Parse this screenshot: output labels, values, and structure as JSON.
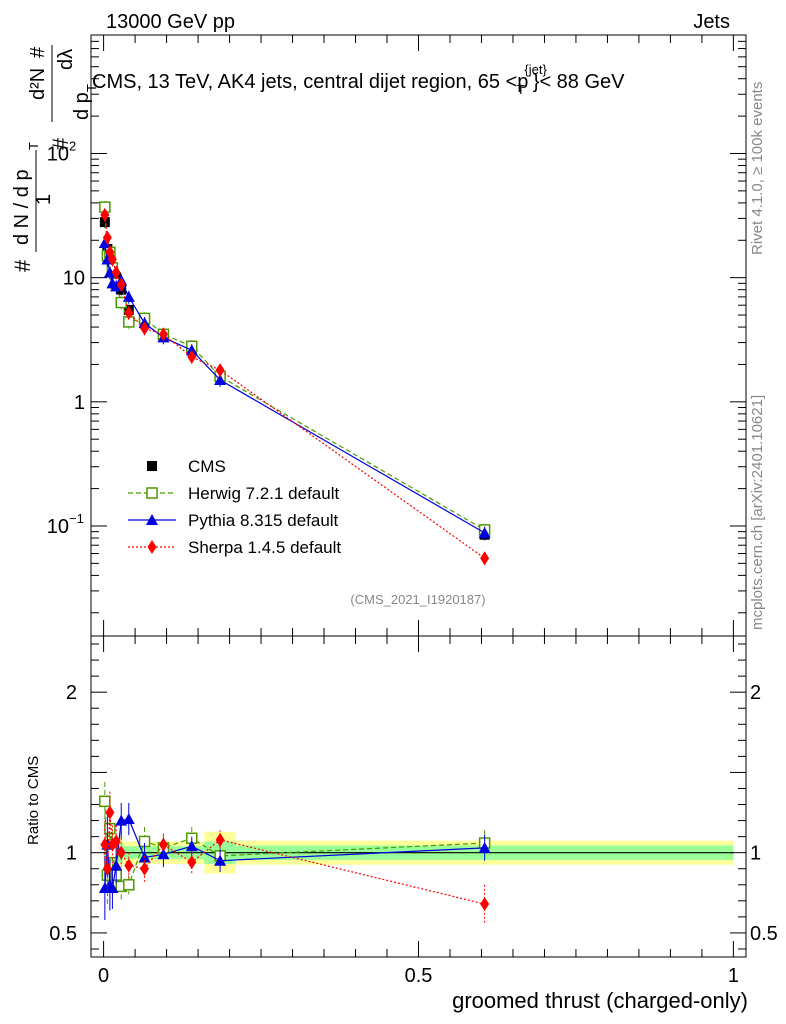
{
  "header": {
    "left": "13000 GeV pp",
    "right": "Jets",
    "title_main": "CMS, 13 TeV, AK4 jets, central dijet region, 65 <p",
    "title_sup": "{jet}",
    "title_sub": "T",
    "title_end": "}< 88 GeV"
  },
  "side": {
    "rivet": "Rivet 4.1.0, ≥ 100k events",
    "mcplots": "mcplots.cern.ch [arXiv:2401.10621]"
  },
  "watermark": "(CMS_2021_I1920187)",
  "ylabel_ratio": "Ratio to CMS",
  "xlabel": "groomed thrust (charged-only)",
  "ylabel_main": {
    "hash": "#",
    "one": "1",
    "dN": "d N / d p",
    "dN_sub": "T",
    "num": "d²N",
    "den": "d p",
    "den_sub": "T",
    "dlambda": "dλ"
  },
  "colors": {
    "cms": "#000000",
    "herwig": "#4c9a00",
    "pythia": "#0000e0",
    "sherpa": "#ff0000",
    "band_outer": "#ffff99",
    "band_inner": "#99ff99"
  },
  "chart_data": {
    "type": "line",
    "x_range": [
      -0.02,
      1.02
    ],
    "y_range_main": [
      0.013,
      900
    ],
    "y_range_ratio": [
      0.35,
      2.35
    ],
    "main_yticks": [
      {
        "value": 0.1,
        "base": "10",
        "exp": "−1"
      },
      {
        "value": 1,
        "label": "1"
      },
      {
        "value": 10,
        "label": "10"
      },
      {
        "value": 100,
        "base": "10",
        "exp": "2"
      }
    ],
    "ratio_yticks": [
      {
        "value": 0.5,
        "label": "0.5"
      },
      {
        "value": 1,
        "label": "1"
      },
      {
        "value": 2,
        "label": "2"
      }
    ],
    "xticks": [
      {
        "value": 0,
        "label": "0"
      },
      {
        "value": 0.5,
        "label": "0.5"
      },
      {
        "value": 1,
        "label": "1"
      }
    ],
    "legend": [
      {
        "name": "CMS",
        "key": "cms"
      },
      {
        "name": "Herwig 7.2.1 default",
        "key": "herwig"
      },
      {
        "name": "Pythia 8.315 default",
        "key": "pythia"
      },
      {
        "name": "Sherpa 1.4.5 default",
        "key": "sherpa"
      }
    ],
    "series": [
      {
        "key": "cms",
        "name": "CMS",
        "x": [
          0.002,
          0.006,
          0.01,
          0.014,
          0.02,
          0.028,
          0.04,
          0.065,
          0.095,
          0.14,
          0.185,
          0.605
        ],
        "y": [
          28,
          17,
          14,
          12,
          10,
          8,
          5.5,
          4.4,
          3.4,
          2.6,
          1.6,
          0.085
        ],
        "err": [
          0.1,
          0.1,
          0.1,
          0.1,
          0.1,
          0.1,
          0.1,
          0.1,
          0.1,
          0.12,
          0.15,
          0.1
        ]
      },
      {
        "key": "herwig",
        "name": "Herwig 7.2.1 default",
        "x": [
          0.002,
          0.006,
          0.01,
          0.014,
          0.02,
          0.028,
          0.04,
          0.065,
          0.095,
          0.14,
          0.185,
          0.605
        ],
        "y": [
          37,
          15,
          16,
          12,
          9,
          6.3,
          4.4,
          4.7,
          3.5,
          2.8,
          1.6,
          0.093
        ],
        "ratio": [
          1.32,
          0.86,
          1.15,
          1.0,
          0.86,
          0.79,
          0.8,
          1.07,
          1.03,
          1.09,
          0.98,
          1.06
        ],
        "rerr": [
          0.12,
          0.2,
          0.16,
          0.13,
          0.12,
          0.1,
          0.06,
          0.09,
          0.08,
          0.07,
          0.06,
          0.08
        ]
      },
      {
        "key": "pythia",
        "name": "Pythia 8.315 default",
        "x": [
          0.002,
          0.006,
          0.01,
          0.014,
          0.02,
          0.028,
          0.04,
          0.065,
          0.095,
          0.14,
          0.185,
          0.605
        ],
        "y": [
          19,
          14,
          11,
          9,
          8.5,
          9.5,
          7,
          4.3,
          3.3,
          2.6,
          1.5,
          0.088
        ],
        "ratio": [
          0.78,
          1.05,
          0.8,
          0.78,
          0.92,
          1.2,
          1.21,
          0.97,
          0.99,
          1.04,
          0.95,
          1.03
        ],
        "rerr": [
          0.2,
          0.2,
          0.16,
          0.13,
          0.11,
          0.11,
          0.1,
          0.09,
          0.08,
          0.06,
          0.07,
          0.08
        ]
      },
      {
        "key": "sherpa",
        "name": "Sherpa 1.4.5 default",
        "x": [
          0.002,
          0.006,
          0.01,
          0.014,
          0.02,
          0.028,
          0.04,
          0.065,
          0.095,
          0.14,
          0.185,
          0.605
        ],
        "y": [
          32,
          21,
          16,
          14,
          11,
          8.8,
          5.2,
          3.9,
          3.5,
          2.3,
          1.8,
          0.055
        ],
        "ratio": [
          1.05,
          0.9,
          1.25,
          1.05,
          1.07,
          1.0,
          0.92,
          0.9,
          1.05,
          0.94,
          1.08,
          0.68
        ],
        "rerr": [
          0.15,
          0.15,
          0.13,
          0.12,
          0.1,
          0.09,
          0.08,
          0.08,
          0.07,
          0.07,
          0.06,
          0.12
        ]
      }
    ],
    "ratio_bands": [
      {
        "x0": 0.0,
        "x1": 0.03,
        "inner": 0.06,
        "outer": 0.1
      },
      {
        "x0": 0.03,
        "x1": 0.16,
        "inner": 0.04,
        "outer": 0.07
      },
      {
        "x0": 0.16,
        "x1": 0.21,
        "inner": 0.07,
        "outer": 0.13
      },
      {
        "x0": 0.21,
        "x1": 1.0,
        "inner": 0.045,
        "outer": 0.075
      }
    ]
  }
}
